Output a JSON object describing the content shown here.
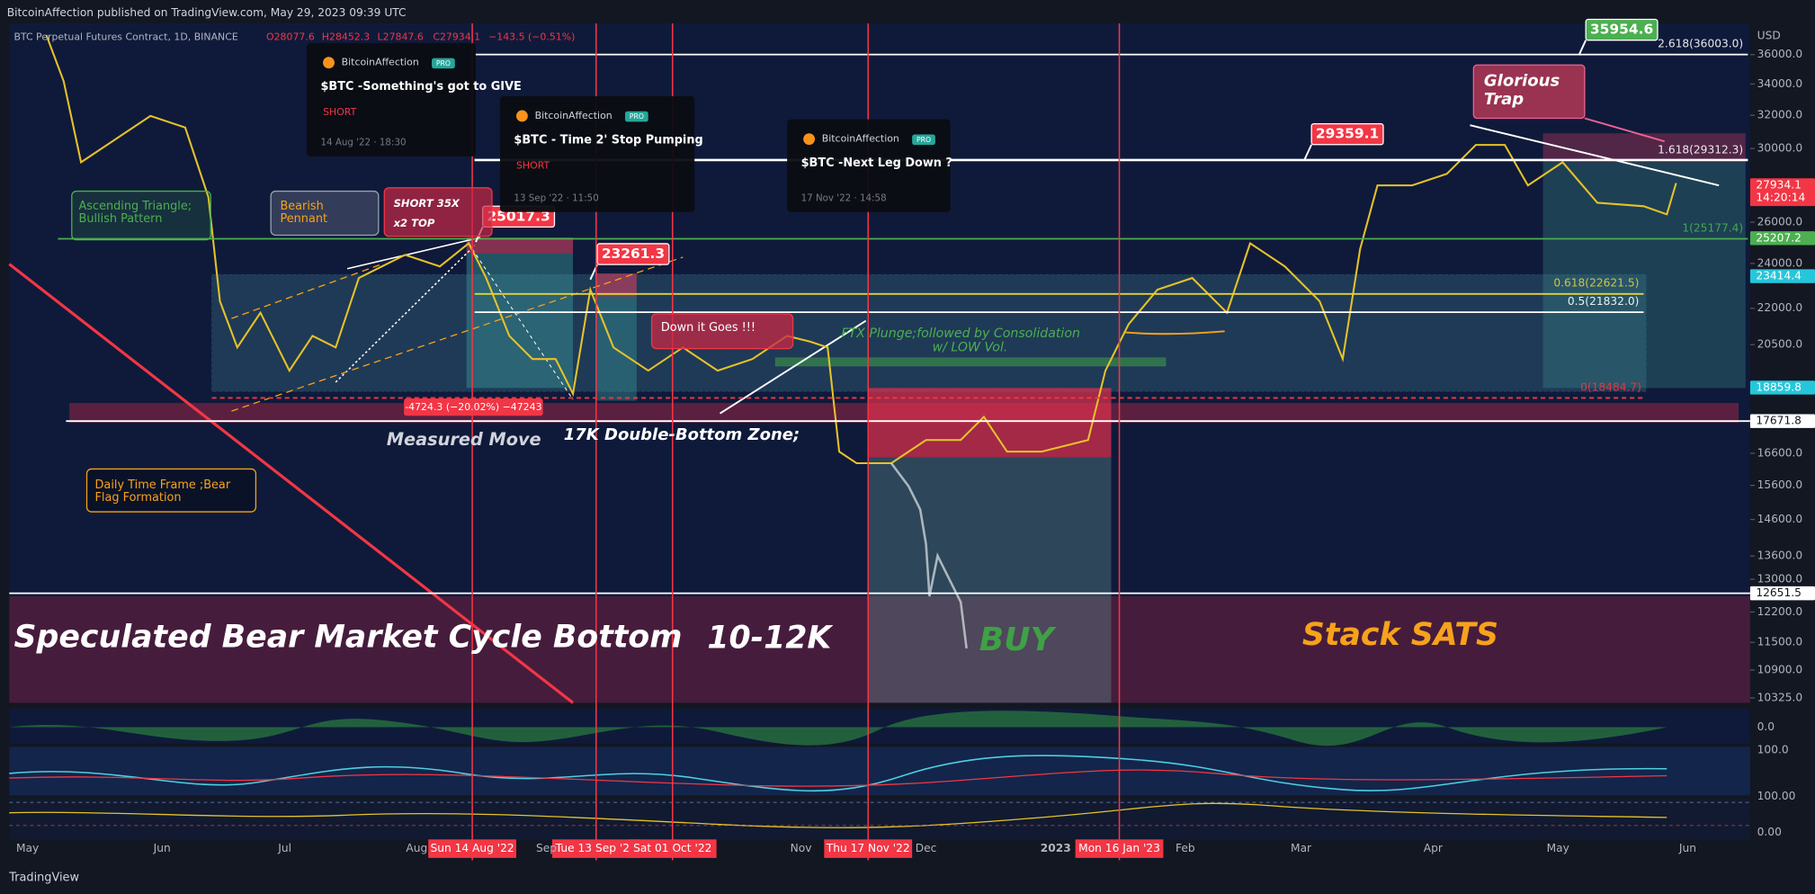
{
  "header": {
    "publisher": "BitcoinAffection published on TradingView.com, May 29, 2023 09:39 UTC",
    "symbol": "BTC Perpetual Futures Contract, 1D, BINANCE",
    "ohlc": [
      "O28077.6",
      "H28452.3",
      "L27847.6",
      "C27934.1"
    ],
    "change": "−143.5 (−0.51%)"
  },
  "ideas": [
    {
      "author": "BitcoinAffection",
      "badge": "PRO",
      "title": "$BTC -Something's got to GIVE",
      "tag": "SHORT",
      "date": "14 Aug '22 · 18:30"
    },
    {
      "author": "BitcoinAffection",
      "badge": "PRO",
      "title": "$BTC - Time 2' Stop Pumping",
      "tag": "SHORT",
      "date": "13 Sep '22 · 11:50"
    },
    {
      "author": "BitcoinAffection",
      "badge": "PRO",
      "title": "$BTC -Next Leg Down ?",
      "date": "17 Nov '22 · 14:58"
    }
  ],
  "price_axis": {
    "unit": "USD",
    "log": true,
    "ylim": [
      10000,
      37000
    ],
    "ticks": [
      {
        "value": 36000,
        "label": "36000.0"
      },
      {
        "value": 34000,
        "label": "34000.0"
      },
      {
        "value": 32000,
        "label": "32000.0"
      },
      {
        "value": 30000,
        "label": "30000.0"
      },
      {
        "value": 26000,
        "label": "26000.0"
      },
      {
        "value": 24000,
        "label": "24000.0"
      },
      {
        "value": 22000,
        "label": "22000.0"
      },
      {
        "value": 20500,
        "label": "20500.0"
      },
      {
        "value": 16600,
        "label": "16600.0"
      },
      {
        "value": 15600,
        "label": "15600.0"
      },
      {
        "value": 14600,
        "label": "14600.0"
      },
      {
        "value": 13600,
        "label": "13600.0"
      },
      {
        "value": 13000,
        "label": "13000.0"
      },
      {
        "value": 12200,
        "label": "12200.0"
      },
      {
        "value": 11500,
        "label": "11500.0"
      },
      {
        "value": 10900,
        "label": "10900.0"
      },
      {
        "value": 10325,
        "label": "10325.0"
      }
    ]
  },
  "price_badges": [
    {
      "value": 27934.1,
      "timer": "14:20:14",
      "color": "#f23645"
    },
    {
      "value": 25207.2,
      "color": "#4caf50"
    },
    {
      "value": 23414.4,
      "color": "#26c6da"
    },
    {
      "value": 18859.8,
      "color": "#26c6da"
    },
    {
      "value": 17671.8,
      "color": "#ffffff"
    },
    {
      "value": 12651.5,
      "color": "#ffffff"
    }
  ],
  "levels": [
    {
      "value": 36003.0,
      "label": "2.618(36003.0)",
      "color": "#ffffff"
    },
    {
      "value": 29312.3,
      "label": "1.618(29312.3)",
      "color": "#ffffff"
    },
    {
      "value": 25177.4,
      "label": "1(25177.4)",
      "color": "#4caf50"
    },
    {
      "value": 22621.5,
      "label": "0.618(22621.5)",
      "color": "#e0d23c"
    },
    {
      "value": 21832.0,
      "label": "0.5(21832.0)",
      "color": "#ffffff"
    },
    {
      "value": 18484.7,
      "label": "0(18484.7)",
      "color": "#f23645"
    }
  ],
  "callouts": [
    {
      "value": 35954.6,
      "color": "#4caf50"
    },
    {
      "value": 29359.1,
      "color": "#f23645"
    },
    {
      "value": 25017.3,
      "color": "#f23645"
    },
    {
      "value": 23261.3,
      "color": "#f23645"
    }
  ],
  "pane_ticks": [
    "0.0",
    "100.0",
    "100.00",
    "0.00"
  ],
  "time_axis": {
    "months": [
      "May",
      "Jun",
      "Jul",
      "Aug",
      "Sep",
      "Nov",
      "Dec",
      "2023",
      "Feb",
      "Mar",
      "Apr",
      "May",
      "Jun"
    ],
    "highlights": [
      "Sun 14 Aug '22",
      "Tue 13 Sep '22",
      "Sat 01 Oct '22",
      "Thu 17 Nov '22",
      "Mon 16 Jan '23"
    ]
  },
  "annotations": {
    "ascending": [
      "Ascending Triangle;",
      "Bullish Pattern"
    ],
    "pennant": [
      "Bearish",
      "Pennant"
    ],
    "short": [
      "SHORT 35X",
      "x2 TOP"
    ],
    "down": "Down it Goes !!!",
    "ftx": [
      "FTX Plunge;followed by Consolidation",
      "w/ LOW Vol."
    ],
    "measure": "-4724.3 (−20.02%) −47243",
    "measured_move": "Measured Move",
    "double_bottom": "17K Double-Bottom Zone;",
    "bear_flag": [
      "Daily Time Frame ;Bear",
      "Flag Formation"
    ],
    "cycle_bottom": "Speculated Bear Market Cycle Bottom",
    "range": "10-12K",
    "buy": "BUY",
    "stack": "Stack SATS",
    "trap": [
      "Glorious",
      "Trap"
    ]
  },
  "footer": "TradingView"
}
